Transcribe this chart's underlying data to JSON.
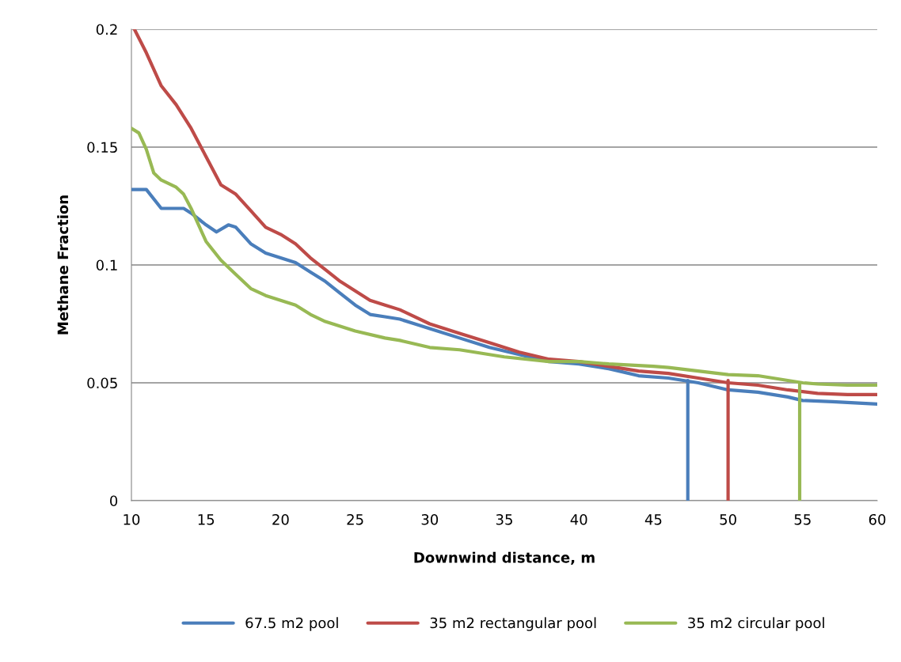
{
  "chart_data": {
    "type": "line",
    "xlabel": "Downwind distance, m",
    "ylabel": "Methane Fraction",
    "xlim": [
      10,
      60
    ],
    "xticks": [
      10,
      15,
      20,
      25,
      30,
      35,
      40,
      45,
      50,
      55,
      60
    ],
    "ylim": [
      0,
      0.2
    ],
    "yticks": [
      0,
      0.05,
      0.1,
      0.15,
      0.2
    ],
    "grid": "y",
    "legend": "bottom",
    "marker": "none",
    "line_style": "solid",
    "series": [
      {
        "name": "67.5 m2 pool",
        "color": "#4a7ebb",
        "x": [
          10,
          11,
          12,
          13,
          13.5,
          14,
          15,
          15.7,
          16.5,
          17,
          18,
          19,
          20,
          21,
          22,
          23,
          24,
          25,
          26,
          27,
          28,
          29,
          30,
          32,
          34,
          36,
          38,
          40,
          42,
          44,
          46,
          48,
          50,
          52,
          54,
          55,
          57,
          60
        ],
        "values": [
          0.132,
          0.132,
          0.124,
          0.124,
          0.124,
          0.122,
          0.117,
          0.114,
          0.117,
          0.116,
          0.109,
          0.105,
          0.103,
          0.101,
          0.097,
          0.093,
          0.088,
          0.083,
          0.079,
          0.078,
          0.077,
          0.075,
          0.073,
          0.069,
          0.065,
          0.062,
          0.059,
          0.058,
          0.056,
          0.053,
          0.052,
          0.05,
          0.047,
          0.046,
          0.044,
          0.0425,
          0.042,
          0.041
        ]
      },
      {
        "name": "35 m2 rectangular pool",
        "color": "#be4b48",
        "x": [
          10.2,
          11,
          12,
          13,
          14,
          15,
          16,
          17,
          18,
          19,
          20,
          21,
          22,
          23,
          24,
          25,
          26,
          27,
          28,
          30,
          32,
          34,
          36,
          38,
          40,
          42,
          44,
          46,
          48,
          50,
          52,
          54,
          56,
          58,
          60
        ],
        "values": [
          0.2,
          0.19,
          0.176,
          0.168,
          0.158,
          0.146,
          0.134,
          0.13,
          0.123,
          0.116,
          0.113,
          0.109,
          0.103,
          0.098,
          0.093,
          0.089,
          0.085,
          0.083,
          0.081,
          0.075,
          0.071,
          0.067,
          0.063,
          0.06,
          0.059,
          0.057,
          0.055,
          0.054,
          0.052,
          0.05,
          0.049,
          0.047,
          0.0455,
          0.045,
          0.045
        ]
      },
      {
        "name": "35 m2 circular pool",
        "color": "#98b954",
        "x": [
          10,
          10.5,
          11,
          11.5,
          12,
          13,
          13.5,
          14,
          15,
          16,
          17,
          18,
          19,
          20,
          21,
          22,
          23,
          25,
          27,
          28,
          30,
          32,
          35,
          38,
          40,
          42,
          45,
          46,
          48,
          50,
          52,
          54,
          55,
          56,
          58,
          60
        ],
        "values": [
          0.158,
          0.156,
          0.149,
          0.139,
          0.136,
          0.133,
          0.13,
          0.124,
          0.11,
          0.102,
          0.096,
          0.09,
          0.087,
          0.085,
          0.083,
          0.079,
          0.076,
          0.072,
          0.069,
          0.068,
          0.065,
          0.064,
          0.061,
          0.059,
          0.059,
          0.058,
          0.057,
          0.0565,
          0.055,
          0.0535,
          0.053,
          0.051,
          0.05,
          0.0495,
          0.049,
          0.049
        ]
      },
      {
        "color": "#4a7ebb",
        "x": [
          47.3,
          47.3
        ],
        "values": [
          0,
          0.051
        ]
      },
      {
        "color": "#be4b48",
        "x": [
          50,
          50
        ],
        "values": [
          0,
          0.051
        ]
      },
      {
        "color": "#98b954",
        "x": [
          54.8,
          54.8
        ],
        "values": [
          0,
          0.05
        ]
      }
    ]
  }
}
